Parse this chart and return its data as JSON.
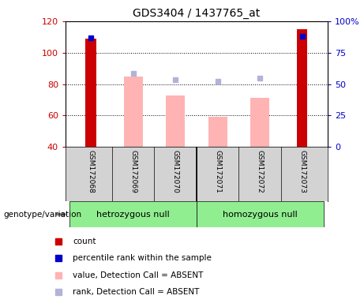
{
  "title": "GDS3404 / 1437765_at",
  "samples": [
    "GSM172068",
    "GSM172069",
    "GSM172070",
    "GSM172071",
    "GSM172072",
    "GSM172073"
  ],
  "ylim_left": [
    40,
    120
  ],
  "ylim_right": [
    0,
    100
  ],
  "yticks_left": [
    40,
    60,
    80,
    100,
    120
  ],
  "yticks_right": [
    0,
    25,
    50,
    75,
    100
  ],
  "ytick_labels_right": [
    "0",
    "25",
    "50",
    "75",
    "100%"
  ],
  "count_values": [
    109,
    null,
    null,
    null,
    null,
    115
  ],
  "count_color": "#cc0000",
  "value_absent_values": [
    null,
    85,
    73,
    59,
    71,
    null
  ],
  "value_absent_color": "#ffb3b3",
  "rank_absent_values": [
    null,
    87,
    83,
    82,
    84,
    null
  ],
  "rank_absent_color": "#b3b3d9",
  "percentile_values": [
    87,
    null,
    null,
    null,
    null,
    88
  ],
  "percentile_color": "#0000cc",
  "bar_width": 0.45,
  "legend_items": [
    {
      "label": "count",
      "color": "#cc0000"
    },
    {
      "label": "percentile rank within the sample",
      "color": "#0000cc"
    },
    {
      "label": "value, Detection Call = ABSENT",
      "color": "#ffb3b3"
    },
    {
      "label": "rank, Detection Call = ABSENT",
      "color": "#b3b3d9"
    }
  ],
  "background_color": "#ffffff",
  "sample_area_color": "#d3d3d3",
  "group1_label": "hetrozygous null",
  "group2_label": "homozygous null",
  "group_color": "#90ee90",
  "left_label_color": "#cc0000",
  "right_label_color": "#0000cc",
  "genotype_label": "genotype/variation"
}
